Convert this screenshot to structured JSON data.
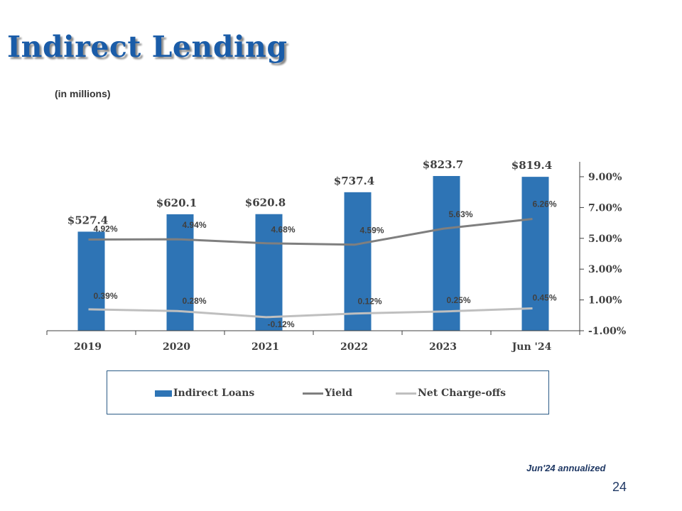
{
  "slide": {
    "title": "Indirect Lending",
    "subtitle": "(in millions)",
    "footnote": "Jun'24 annualized",
    "page_number": "24"
  },
  "colors": {
    "title": "#1a5ca8",
    "bar": "#2e74b5",
    "yield_line": "#7f7f7f",
    "nco_line": "#bfbfbf",
    "axis": "#404040"
  },
  "chart_data": {
    "type": "bar",
    "categories": [
      "2019",
      "2020",
      "2021",
      "2022",
      "2023",
      "Jun '24"
    ],
    "series": [
      {
        "name": "Indirect Loans",
        "type": "bar",
        "axis": "left",
        "values": [
          527.4,
          620.1,
          620.8,
          737.4,
          823.7,
          819.4
        ],
        "labels": [
          "$527.4",
          "$620.1",
          "$620.8",
          "$737.4",
          "$823.7",
          "$819.4"
        ]
      },
      {
        "name": "Yield",
        "type": "line",
        "axis": "right",
        "values": [
          4.92,
          4.94,
          4.68,
          4.59,
          5.63,
          6.26
        ],
        "labels": [
          "4.92%",
          "4.94%",
          "4.68%",
          "4.59%",
          "5.63%",
          "6.26%"
        ]
      },
      {
        "name": "Net Charge-offs",
        "type": "line",
        "axis": "right",
        "values": [
          0.39,
          0.28,
          -0.12,
          0.12,
          0.25,
          0.45
        ],
        "labels": [
          "0.39%",
          "0.28%",
          "-0.12%",
          "0.12%",
          "0.25%",
          "0.45%"
        ]
      }
    ],
    "left_axis": {
      "visible": false,
      "ylim": [
        0,
        900
      ]
    },
    "right_axis": {
      "ylim": [
        -1.0,
        10.0
      ],
      "ticks": [
        -1.0,
        1.0,
        3.0,
        5.0,
        7.0,
        9.0
      ],
      "tick_labels": [
        "-1.00%",
        "1.00%",
        "3.00%",
        "5.00%",
        "7.00%",
        "9.00%"
      ]
    },
    "grid": false,
    "legend_position": "bottom"
  }
}
